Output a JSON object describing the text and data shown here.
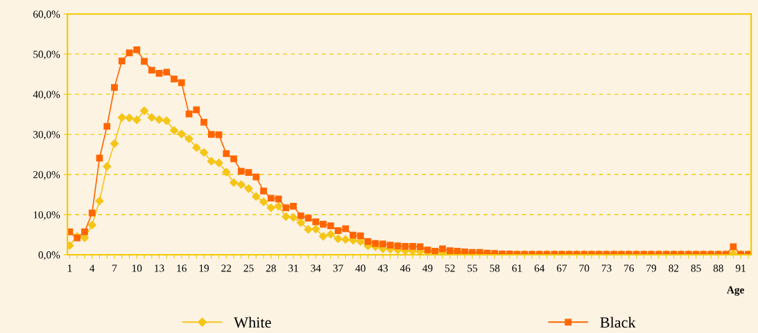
{
  "chart_data": {
    "type": "line",
    "xlabel": "Age",
    "categories": [
      "1",
      null,
      null,
      "4",
      null,
      null,
      "7",
      null,
      null,
      "10",
      null,
      null,
      "13",
      null,
      null,
      "16",
      null,
      null,
      "19",
      null,
      null,
      "22",
      null,
      null,
      "25",
      null,
      null,
      "28",
      null,
      null,
      "31",
      null,
      null,
      "34",
      null,
      null,
      "37",
      null,
      null,
      "40",
      null,
      null,
      "43",
      null,
      null,
      "46",
      null,
      null,
      "49",
      null,
      null,
      "52",
      null,
      null,
      "55",
      null,
      null,
      "58",
      null,
      null,
      "61",
      null,
      null,
      "64",
      null,
      null,
      "67",
      null,
      null,
      "70",
      null,
      null,
      "73",
      null,
      null,
      "76",
      null,
      null,
      "79",
      null,
      null,
      "82",
      null,
      null,
      "85",
      null,
      null,
      "88",
      null,
      null,
      "91",
      null
    ],
    "series": [
      {
        "name": "White",
        "color": "#f5c518",
        "marker": "diamond",
        "values": [
          2.3,
          4.6,
          4.2,
          7.4,
          13.4,
          22.0,
          27.7,
          34.2,
          34.1,
          33.6,
          35.9,
          34.2,
          33.7,
          33.4,
          31.0,
          30.1,
          28.9,
          26.7,
          25.5,
          23.3,
          22.9,
          20.6,
          18.0,
          17.5,
          16.5,
          14.5,
          13.2,
          11.7,
          12.1,
          9.5,
          9.3,
          8.0,
          6.3,
          6.4,
          4.6,
          5.1,
          4.0,
          3.8,
          3.6,
          3.3,
          2.2,
          2.0,
          1.5,
          1.4,
          1.2,
          1.0,
          0.9,
          0.8,
          0.7,
          0.6,
          0.6,
          0.5,
          0.4,
          0.4,
          0.3,
          0.3,
          0.2,
          0.2,
          0.1,
          0.1,
          0.1,
          0.1,
          0.1,
          0.1,
          0.1,
          0.1,
          0.1,
          0.1,
          0.1,
          0.1,
          0.1,
          0.1,
          0.1,
          0.1,
          0.1,
          0.1,
          0.1,
          0.1,
          0.1,
          0.1,
          0.1,
          0.1,
          0.1,
          0.1,
          0.1,
          0.1,
          0.1,
          0.1,
          0.1,
          0.3,
          0.1,
          0.1
        ]
      },
      {
        "name": "Black",
        "color": "#ff6600",
        "marker": "square",
        "values": [
          5.7,
          4.2,
          5.7,
          10.4,
          24.1,
          32.0,
          41.7,
          48.3,
          50.3,
          51.1,
          48.2,
          46.0,
          45.2,
          45.5,
          43.8,
          42.9,
          35.1,
          36.1,
          33.0,
          30.0,
          29.9,
          25.2,
          23.9,
          20.8,
          20.5,
          19.4,
          15.9,
          14.1,
          13.9,
          11.7,
          12.1,
          9.7,
          9.1,
          8.2,
          7.6,
          7.2,
          6.0,
          6.5,
          4.9,
          4.7,
          3.3,
          2.8,
          2.7,
          2.4,
          2.2,
          2.1,
          2.1,
          2.0,
          1.2,
          0.9,
          1.5,
          1.0,
          0.9,
          0.7,
          0.6,
          0.6,
          0.4,
          0.3,
          0.2,
          0.2,
          0.1,
          0.1,
          0.1,
          0.1,
          0.1,
          0.1,
          0.1,
          0.1,
          0.1,
          0.1,
          0.1,
          0.1,
          0.1,
          0.1,
          0.1,
          0.1,
          0.1,
          0.1,
          0.1,
          0.1,
          0.1,
          0.1,
          0.1,
          0.1,
          0.1,
          0.1,
          0.1,
          0.1,
          0.1,
          2.0,
          0.1,
          0.1
        ]
      }
    ],
    "ylim": [
      0,
      60
    ],
    "yticks": [
      {
        "value": 0,
        "label": "0,0%"
      },
      {
        "value": 10,
        "label": "10,0%"
      },
      {
        "value": 20,
        "label": "20,0%"
      },
      {
        "value": 30,
        "label": "30,0%"
      },
      {
        "value": 40,
        "label": "40,0%"
      },
      {
        "value": 50,
        "label": "50,0%"
      },
      {
        "value": 60,
        "label": "60,0%"
      }
    ],
    "grid": "y",
    "legend": "bottom",
    "line_style": "solid"
  }
}
